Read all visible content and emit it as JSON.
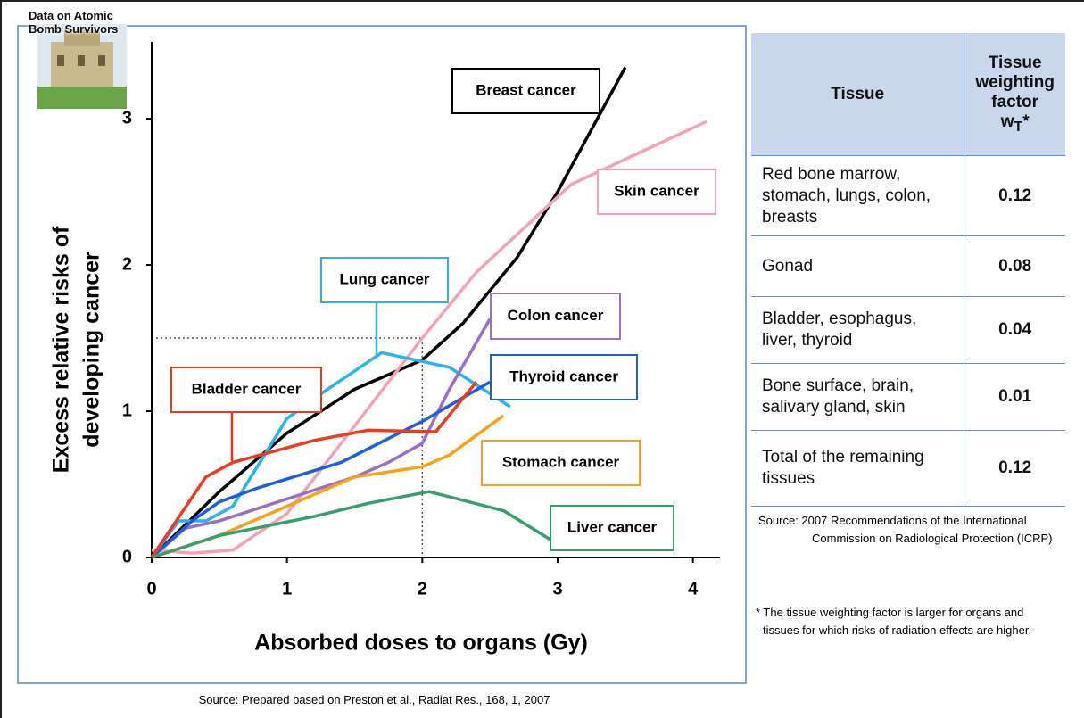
{
  "chart_data": {
    "type": "line",
    "badge": "Data on Atomic Bomb Survivors",
    "ylabel": [
      "Excess relative risks of",
      "developing cancer"
    ],
    "xlabel": "Absorbed doses to organs (Gy)",
    "xlim": [
      0,
      4.2
    ],
    "ylim": [
      0,
      3.5
    ],
    "xticks": [
      0,
      1,
      2,
      3,
      4
    ],
    "yticks": [
      0,
      1,
      2,
      3
    ],
    "guide": {
      "x": 2,
      "y": 1.5
    },
    "series": [
      {
        "name": "Breast cancer",
        "color": "#000000",
        "x": [
          0,
          0.5,
          1,
          1.5,
          2,
          2.3,
          2.7,
          3,
          3.5
        ],
        "values": [
          0,
          0.45,
          0.85,
          1.15,
          1.35,
          1.6,
          2.05,
          2.5,
          3.35
        ]
      },
      {
        "name": "Skin cancer",
        "color": "#f4a3b4",
        "x": [
          0,
          0.3,
          0.6,
          1,
          1.5,
          2,
          2.4,
          3.1,
          4.1
        ],
        "values": [
          0.05,
          0.03,
          0.05,
          0.3,
          0.9,
          1.5,
          1.95,
          2.55,
          2.98
        ]
      },
      {
        "name": "Lung cancer",
        "color": "#2ab4ee",
        "x": [
          0,
          0.2,
          0.4,
          0.6,
          0.8,
          1,
          1.3,
          1.7,
          2.2,
          2.65
        ],
        "values": [
          0,
          0.25,
          0.25,
          0.35,
          0.65,
          0.95,
          1.15,
          1.4,
          1.3,
          1.03
        ]
      },
      {
        "name": "Colon cancer",
        "color": "#9a6fc8",
        "x": [
          0,
          0.25,
          0.5,
          1,
          1.5,
          1.75,
          2,
          2.2,
          2.5
        ],
        "values": [
          0,
          0.2,
          0.25,
          0.4,
          0.55,
          0.65,
          0.78,
          1.15,
          1.63
        ]
      },
      {
        "name": "Thyroid cancer",
        "color": "#1e5fe0",
        "x": [
          0,
          0.3,
          0.5,
          0.8,
          1.4,
          2,
          2.5
        ],
        "values": [
          0,
          0.25,
          0.38,
          0.48,
          0.65,
          0.93,
          1.2
        ]
      },
      {
        "name": "Bladder cancer",
        "color": "#ee3a1f",
        "x": [
          0,
          0.4,
          0.6,
          0.8,
          1.2,
          1.6,
          2.1,
          2.4
        ],
        "values": [
          0,
          0.55,
          0.65,
          0.7,
          0.8,
          0.87,
          0.86,
          1.2
        ]
      },
      {
        "name": "Stomach cancer",
        "color": "#f7a21a",
        "x": [
          0,
          0.5,
          1,
          1.5,
          2,
          2.2,
          2.6
        ],
        "values": [
          0,
          0.15,
          0.35,
          0.55,
          0.62,
          0.7,
          0.97
        ]
      },
      {
        "name": "Liver cancer",
        "color": "#3a9e6a",
        "x": [
          0,
          0.5,
          1.2,
          1.6,
          2.05,
          2.6,
          2.95
        ],
        "values": [
          0,
          0.15,
          0.28,
          0.37,
          0.45,
          0.32,
          0.12
        ]
      }
    ],
    "source": "Source: Prepared based on Preston et al., Radiat Res., 168, 1, 2007"
  },
  "table": {
    "header": {
      "tissue": "Tissue",
      "factor": [
        "Tissue",
        "weighting",
        "factor"
      ],
      "symbol": {
        "base": "w",
        "sub": "T",
        "suffix": "*"
      }
    },
    "rows": [
      [
        "Red bone marrow, stomach, lungs, colon, breasts",
        "0.12"
      ],
      [
        "Gonad",
        "0.08"
      ],
      [
        "Bladder, esophagus, liver, thyroid",
        "0.04"
      ],
      [
        "Bone surface, brain, salivary gland, skin",
        "0.01"
      ],
      [
        "Total of the remaining tissues",
        "0.12"
      ]
    ],
    "source": "Source: 2007 Recommendations of the International Commission on Radiological Protection (ICRP)",
    "footnote": "* The tissue weighting factor is larger for organs and tissues for which risks of radiation effects are higher."
  }
}
